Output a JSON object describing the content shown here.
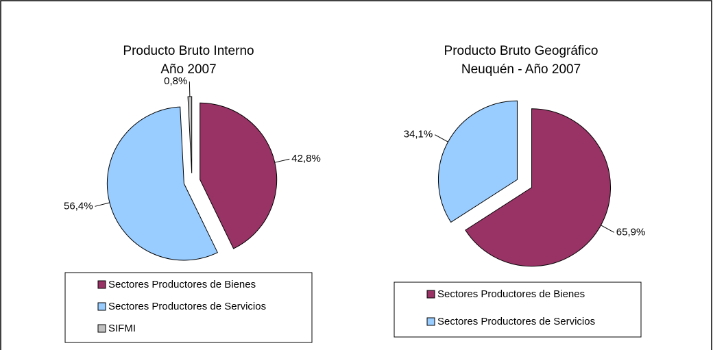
{
  "chart_data": [
    {
      "type": "pie",
      "title": "Producto Bruto Interno",
      "subtitle": "Año 2007",
      "categories": [
        "Sectores Productores de Bienes",
        "Sectores Productores de Servicios",
        "SIFMI"
      ],
      "values": [
        42.8,
        56.4,
        0.8
      ],
      "value_labels": [
        "42,8%",
        "56,4%",
        "0,8%"
      ],
      "colors": [
        "#993366",
        "#99ccff",
        "#c0c0c0"
      ],
      "legend": "bottom"
    },
    {
      "type": "pie",
      "title": "Producto Bruto Geográfico",
      "subtitle": "Neuquén - Año 2007",
      "categories": [
        "Sectores Productores de Bienes",
        "Sectores Productores de Servicios"
      ],
      "values": [
        65.9,
        34.1
      ],
      "value_labels": [
        "65,9%",
        "34,1%"
      ],
      "colors": [
        "#993366",
        "#99ccff"
      ],
      "legend": "bottom"
    }
  ]
}
